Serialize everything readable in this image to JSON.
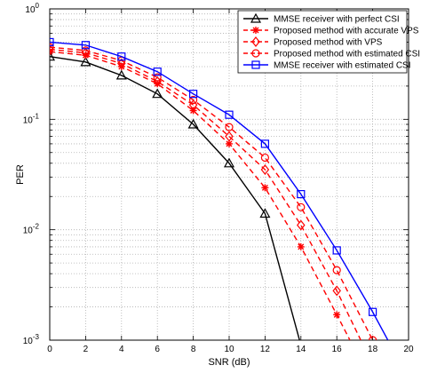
{
  "chart_data": {
    "type": "line",
    "xlabel": "SNR (dB)",
    "ylabel": "PER",
    "xlim": [
      0,
      20
    ],
    "ylim": [
      0.001,
      1
    ],
    "yscale": "log",
    "grid": true,
    "legend_position": "top-right",
    "x_ticks": [
      "0",
      "2",
      "4",
      "6",
      "8",
      "10",
      "12",
      "14",
      "16",
      "18",
      "20"
    ],
    "y_ticks": [
      {
        "base": "10",
        "exp": "0",
        "value": 1
      },
      {
        "base": "10",
        "exp": "-1",
        "value": 0.1
      },
      {
        "base": "10",
        "exp": "-2",
        "value": 0.01
      },
      {
        "base": "10",
        "exp": "-3",
        "value": 0.001
      }
    ],
    "series": [
      {
        "name": "MMSE receiver with perfect CSI",
        "color": "#000000",
        "line": "solid",
        "marker": "triangle",
        "x": [
          0,
          2,
          4,
          6,
          8,
          10,
          12,
          14
        ],
        "y": [
          0.37,
          0.33,
          0.25,
          0.17,
          0.09,
          0.04,
          0.014,
          0.0009
        ]
      },
      {
        "name": "Proposed method with accurate VPS",
        "color": "#ff0000",
        "line": "dashed",
        "marker": "asterisk",
        "x": [
          0,
          2,
          4,
          6,
          8,
          10,
          12,
          14,
          16,
          18
        ],
        "y": [
          0.41,
          0.38,
          0.3,
          0.21,
          0.12,
          0.06,
          0.024,
          0.007,
          0.0017,
          0.0004
        ]
      },
      {
        "name": "Proposed method with VPS",
        "color": "#ff0000",
        "line": "dashed",
        "marker": "diamond",
        "x": [
          0,
          2,
          4,
          6,
          8,
          10,
          12,
          14,
          16,
          18
        ],
        "y": [
          0.43,
          0.4,
          0.32,
          0.22,
          0.135,
          0.07,
          0.035,
          0.011,
          0.0028,
          0.0006
        ]
      },
      {
        "name": "Proposed method with estimated CSI",
        "color": "#ff0000",
        "line": "dashed",
        "marker": "circle",
        "x": [
          0,
          2,
          4,
          6,
          8,
          10,
          12,
          14,
          16,
          18
        ],
        "y": [
          0.45,
          0.42,
          0.34,
          0.24,
          0.15,
          0.085,
          0.045,
          0.016,
          0.0043,
          0.001
        ]
      },
      {
        "name": "MMSE receiver with estimated CSI",
        "color": "#0000ff",
        "line": "solid",
        "marker": "square",
        "x": [
          0,
          2,
          4,
          6,
          8,
          10,
          12,
          14,
          16,
          18,
          19
        ],
        "y": [
          0.5,
          0.47,
          0.37,
          0.27,
          0.17,
          0.11,
          0.06,
          0.021,
          0.0065,
          0.0018,
          0.0009
        ]
      }
    ]
  }
}
